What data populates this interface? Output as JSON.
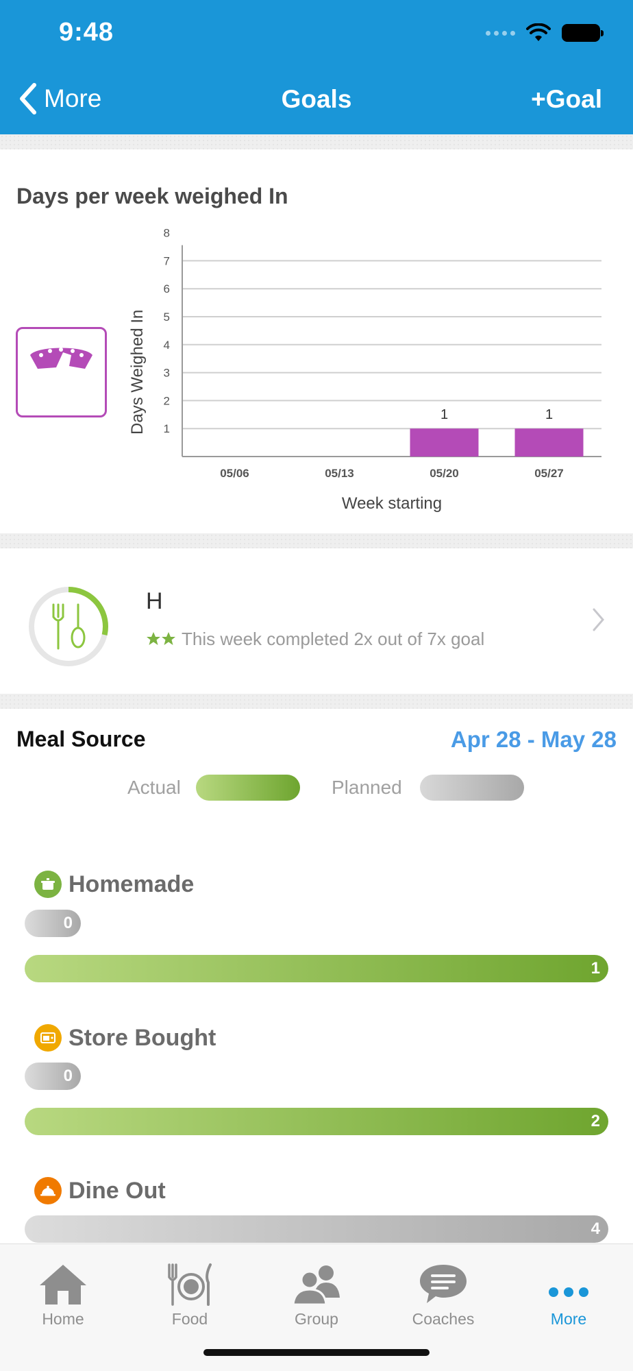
{
  "status_bar": {
    "time": "9:48"
  },
  "nav": {
    "back_label": "More",
    "title": "Goals",
    "action_label": "+Goal"
  },
  "weigh_in": {
    "title": "Days per week weighed In",
    "chart_data": {
      "type": "bar",
      "categories": [
        "05/06",
        "05/13",
        "05/20",
        "05/27"
      ],
      "values": [
        0,
        0,
        1,
        1
      ],
      "data_labels": [
        "",
        "",
        "1",
        "1"
      ],
      "y_ticks": [
        "1",
        "2",
        "3",
        "4",
        "5",
        "6",
        "7",
        "8"
      ],
      "xlabel": "Week starting",
      "ylabel": "Days Weighed In",
      "ylim": [
        0,
        8
      ],
      "grid": true,
      "bar_color": "#b44bb7"
    }
  },
  "goal": {
    "name": "H",
    "description": "This week completed 2x out of 7x goal",
    "progress": 0.2857,
    "accent": "#8cc63f"
  },
  "meal_source": {
    "title": "Meal Source",
    "date_range": "Apr 28 - May 28",
    "legend_actual": "Actual",
    "legend_planned": "Planned",
    "categories": [
      {
        "label": "Homemade",
        "icon": "pot-icon",
        "icon_color": "#7cb342",
        "planned": "0",
        "actual": "1"
      },
      {
        "label": "Store Bought",
        "icon": "store-icon",
        "icon_color": "#f0a800",
        "planned": "0",
        "actual": "2"
      },
      {
        "label": "Dine Out",
        "icon": "cloche-icon",
        "icon_color": "#f07a00",
        "planned": "4"
      }
    ]
  },
  "tabs": [
    {
      "label": "Home",
      "icon": "home-icon"
    },
    {
      "label": "Food",
      "icon": "food-icon"
    },
    {
      "label": "Group",
      "icon": "group-icon"
    },
    {
      "label": "Coaches",
      "icon": "coaches-icon"
    },
    {
      "label": "More",
      "icon": "more-icon",
      "active": true
    }
  ],
  "colors": {
    "brand": "#1a96d8",
    "weigh_in": "#b44bb7",
    "actual_green": "#6fa52f",
    "range_blue": "#4a9be6"
  }
}
